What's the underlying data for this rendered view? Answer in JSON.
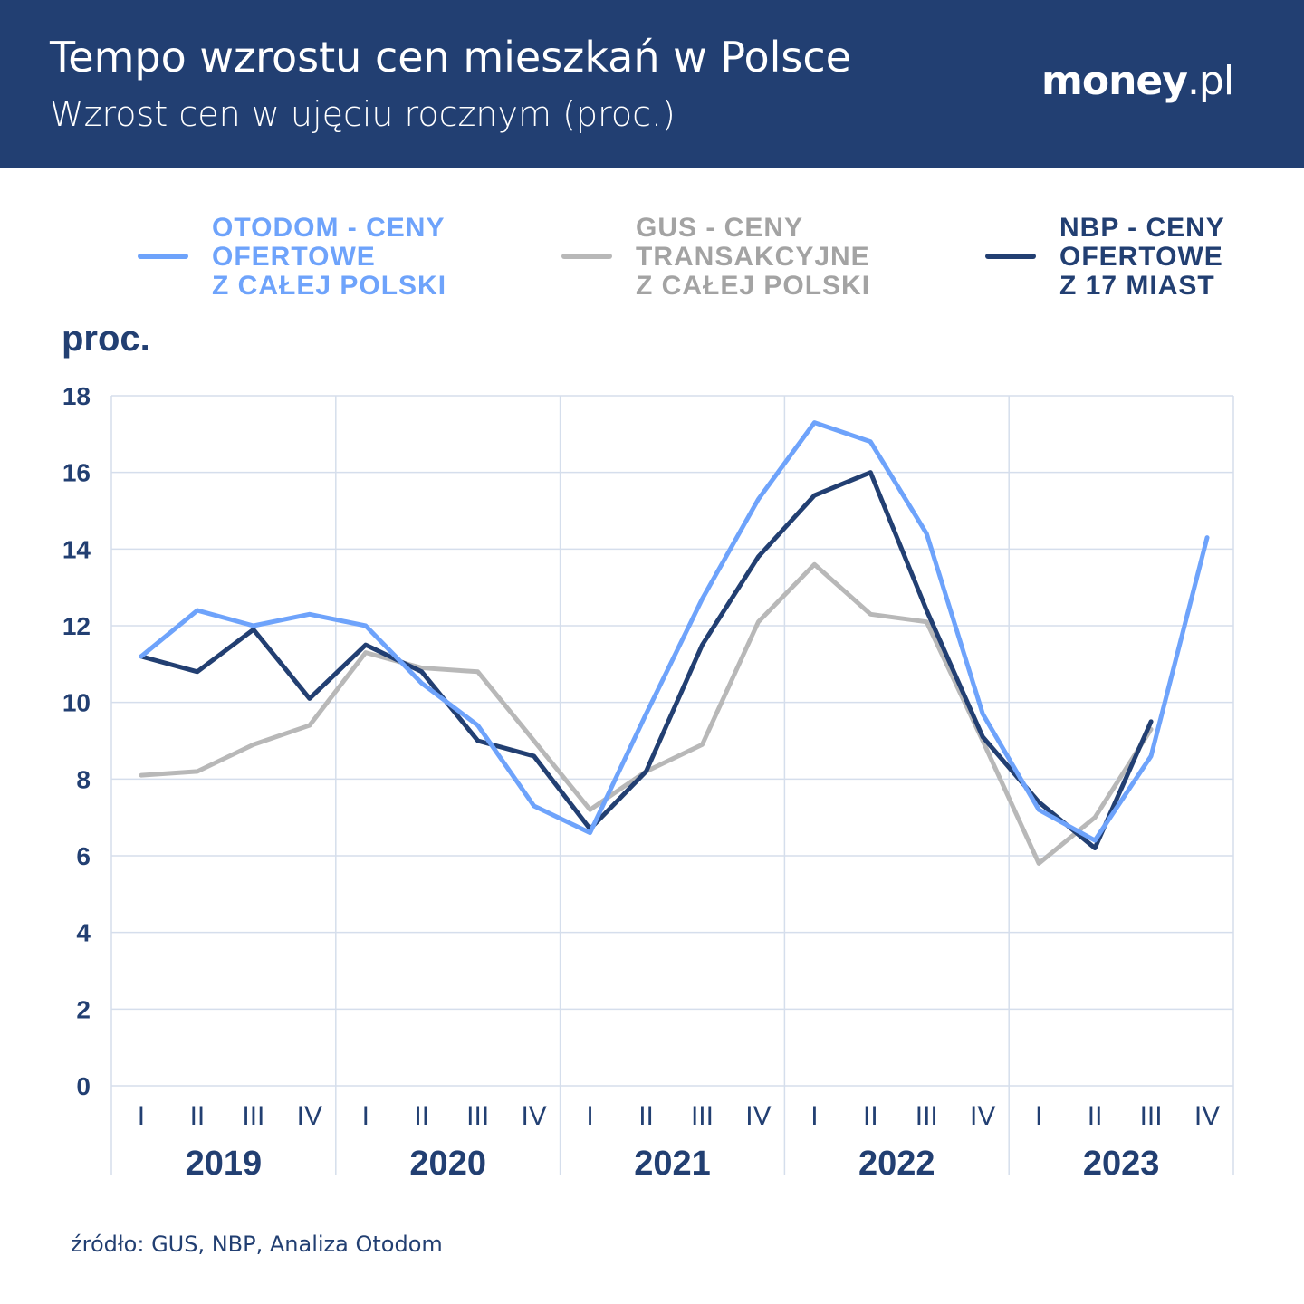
{
  "header": {
    "title": "Tempo wzrostu cen mieszkań w Polsce",
    "subtitle": "Wzrost cen w ujęciu rocznym (proc.)",
    "logo": "money.pl"
  },
  "source": "źródło: GUS, NBP, Analiza Otodom",
  "chart_data": {
    "type": "line",
    "ylabel": "proc.",
    "ylim": [
      0,
      18
    ],
    "yticks": [
      0,
      2,
      4,
      6,
      8,
      10,
      12,
      14,
      16,
      18
    ],
    "grid": true,
    "legend_position": "top",
    "years": [
      "2019",
      "2020",
      "2021",
      "2022",
      "2023"
    ],
    "quarters": [
      "I",
      "II",
      "III",
      "IV"
    ],
    "series": [
      {
        "name": "OTODOM - CENY\nOFERTOWE\nZ CAŁEJ POLSKI",
        "color": "#6ea3fb",
        "values": [
          11.2,
          12.4,
          12.0,
          12.3,
          12.0,
          10.5,
          9.4,
          7.3,
          6.6,
          9.7,
          12.7,
          15.3,
          17.3,
          16.8,
          14.4,
          9.7,
          7.2,
          6.4,
          8.6,
          14.3
        ]
      },
      {
        "name": "GUS - CENY\nTRANSAKCYJNE\nZ CAŁEJ POLSKI",
        "color": "#b8b8b8",
        "values": [
          8.1,
          8.2,
          8.9,
          9.4,
          11.3,
          10.9,
          10.8,
          9.0,
          7.2,
          8.2,
          8.9,
          12.1,
          13.6,
          12.3,
          12.1,
          9.0,
          5.8,
          7.0,
          9.3,
          null
        ]
      },
      {
        "name": "NBP - CENY\nOFERTOWE\nZ 17 MIAST",
        "color": "#223f72",
        "values": [
          11.2,
          10.8,
          11.9,
          10.1,
          11.5,
          10.8,
          9.0,
          8.6,
          6.7,
          8.2,
          11.5,
          13.8,
          15.4,
          16.0,
          12.4,
          9.1,
          7.4,
          6.2,
          9.5,
          null
        ]
      }
    ]
  }
}
